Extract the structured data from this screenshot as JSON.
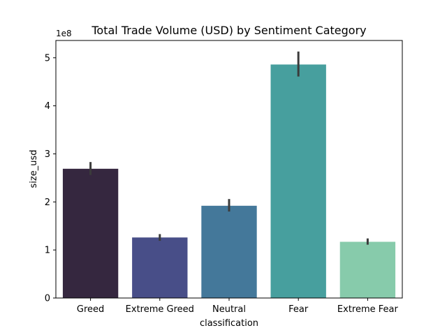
{
  "chart_data": {
    "type": "bar",
    "title": "Total Trade Volume (USD) by Sentiment Category",
    "xlabel": "classification",
    "ylabel": "size_usd",
    "y_multiplier_label": "1e8",
    "categories": [
      "Greed",
      "Extreme Greed",
      "Neutral",
      "Fear",
      "Extreme Fear"
    ],
    "values": [
      2.69,
      1.26,
      1.92,
      4.86,
      1.17
    ],
    "error_low": [
      2.56,
      1.19,
      1.8,
      4.61,
      1.11
    ],
    "error_high": [
      2.83,
      1.33,
      2.06,
      5.13,
      1.24
    ],
    "colors": [
      "#35273f",
      "#484e88",
      "#44789a",
      "#479f9e",
      "#87cbab"
    ],
    "error_color": "#3b3b3b",
    "ylim": [
      0,
      5.36
    ],
    "yticks": [
      0,
      1,
      2,
      3,
      4,
      5
    ],
    "ytick_labels": [
      "0",
      "1",
      "2",
      "3",
      "4",
      "5"
    ],
    "grid": false,
    "legend": "none"
  }
}
